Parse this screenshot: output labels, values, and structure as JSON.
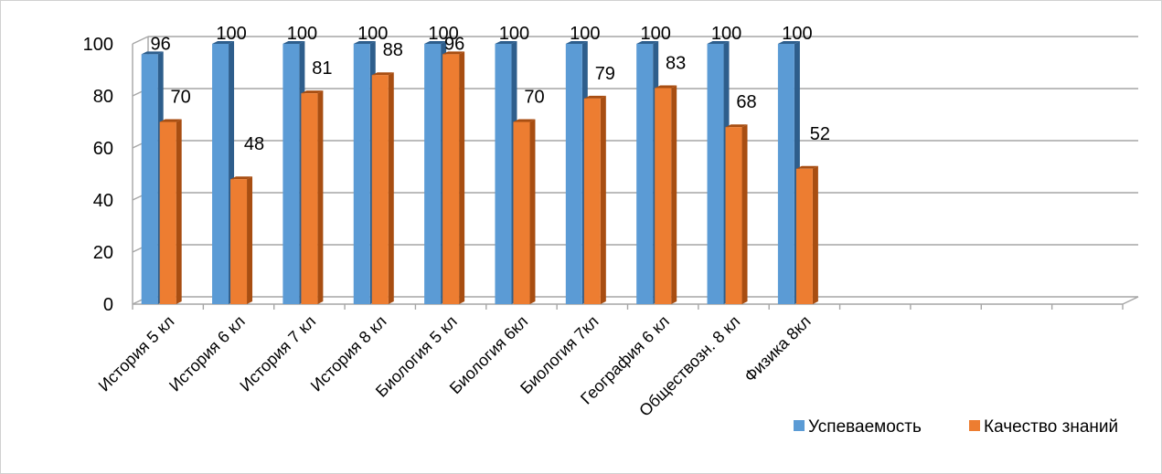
{
  "chart_data": {
    "type": "bar",
    "title": "",
    "xlabel": "",
    "ylabel": "",
    "ylim": [
      0,
      100
    ],
    "yticks": [
      0,
      20,
      40,
      60,
      80,
      100
    ],
    "grid": true,
    "legend_position": "bottom-right",
    "categories": [
      "История 5 кл",
      "История 6 кл",
      "История 7 кл",
      "История 8 кл",
      "Биология 5 кл",
      "Биология 6кл",
      "Биология 7кл",
      "География 6 кл",
      "Обществозн. 8 кл",
      "Физика 8кл",
      "",
      "",
      "",
      ""
    ],
    "series": [
      {
        "name": "Успеваемость",
        "color": "#5B9BD5",
        "side_color": "#2E5E8C",
        "values": [
          96,
          100,
          100,
          100,
          100,
          100,
          100,
          100,
          100,
          100,
          null,
          null,
          null,
          null
        ]
      },
      {
        "name": "Качество знаний",
        "color": "#ED7D31",
        "side_color": "#A84E12",
        "values": [
          70,
          48,
          81,
          88,
          96,
          70,
          79,
          83,
          68,
          52,
          null,
          null,
          null,
          null
        ]
      }
    ]
  }
}
